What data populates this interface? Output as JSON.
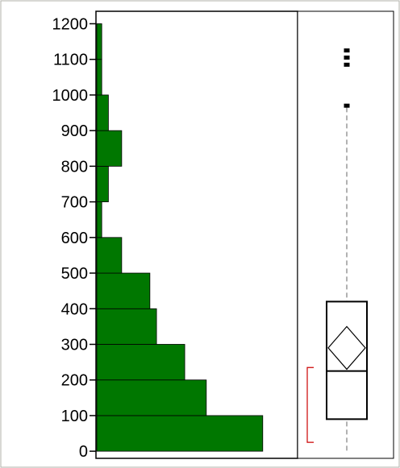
{
  "chart_data": {
    "type": "histogram_with_boxplot",
    "orientation": "horizontal",
    "y_axis": {
      "ylim": [
        -20,
        1235
      ],
      "ticks": [
        0,
        100,
        200,
        300,
        400,
        500,
        600,
        700,
        800,
        900,
        1000,
        1100,
        1200
      ],
      "tick_labels": [
        "0",
        "100",
        "200",
        "300",
        "400",
        "500",
        "600",
        "700",
        "800",
        "900",
        "1000",
        "1100",
        "1200"
      ]
    },
    "histogram": {
      "bin_width": 100,
      "bins": [
        {
          "from": 0,
          "to": 100,
          "value": 100
        },
        {
          "from": 100,
          "to": 200,
          "value": 66
        },
        {
          "from": 200,
          "to": 300,
          "value": 53
        },
        {
          "from": 300,
          "to": 400,
          "value": 36
        },
        {
          "from": 400,
          "to": 500,
          "value": 32
        },
        {
          "from": 500,
          "to": 600,
          "value": 15
        },
        {
          "from": 600,
          "to": 700,
          "value": 3
        },
        {
          "from": 700,
          "to": 800,
          "value": 7
        },
        {
          "from": 800,
          "to": 900,
          "value": 15
        },
        {
          "from": 900,
          "to": 1000,
          "value": 7
        },
        {
          "from": 1000,
          "to": 1100,
          "value": 3
        },
        {
          "from": 1100,
          "to": 1200,
          "value": 3
        }
      ],
      "xlim": [
        0,
        121
      ],
      "color": "#007700"
    },
    "boxplot": {
      "lower_whisker": 0,
      "q1": 90,
      "median": 225,
      "q3": 420,
      "upper_whisker": 965,
      "mean": 290,
      "mean_ci": [
        230,
        350
      ],
      "outliers": [
        970,
        1085,
        1105,
        1125
      ],
      "shortest_half": [
        25,
        235
      ],
      "shortest_half_color": "#cc0000"
    }
  }
}
